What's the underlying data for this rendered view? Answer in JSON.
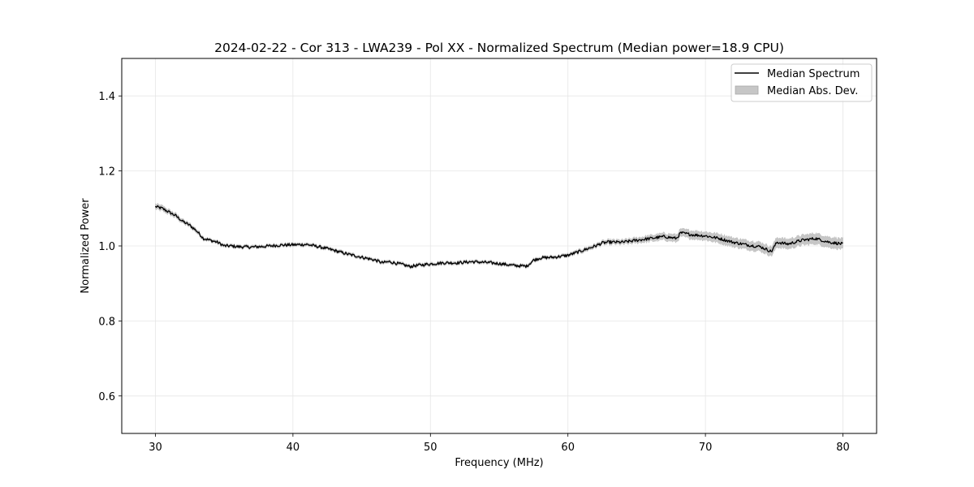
{
  "chart_data": {
    "type": "line",
    "title": "2024-02-22 - Cor 313 - LWA239 - Pol XX - Normalized Spectrum (Median power=18.9 CPU)",
    "xlabel": "Frequency (MHz)",
    "ylabel": "Normalized Power",
    "xlim": [
      27.55,
      82.45
    ],
    "ylim": [
      0.5,
      1.5
    ],
    "xticks": [
      30,
      40,
      50,
      60,
      70,
      80
    ],
    "xtick_labels": [
      "30",
      "40",
      "50",
      "60",
      "70",
      "80"
    ],
    "yticks": [
      0.6,
      0.8,
      1.0,
      1.2,
      1.4
    ],
    "ytick_labels": [
      "0.6",
      "0.8",
      "1.0",
      "1.2",
      "1.4"
    ],
    "grid": true,
    "legend_position": "top-right",
    "legend": [
      "Median Spectrum",
      "Median Abs. Dev."
    ],
    "series": [
      {
        "name": "Median Spectrum",
        "color": "#000000",
        "x": [
          30,
          30.5,
          31,
          31.5,
          32,
          32.5,
          33,
          33.5,
          34,
          34.5,
          35,
          35.5,
          36,
          37,
          38,
          39,
          40,
          41,
          42,
          43,
          44,
          45,
          46,
          46.5,
          47,
          48,
          48.5,
          49,
          50,
          51,
          52,
          53,
          54,
          55,
          56,
          57,
          57.5,
          58,
          59,
          60,
          61,
          62,
          62.5,
          63,
          64,
          65,
          66,
          67,
          67.9,
          68.2,
          69,
          70,
          71,
          72,
          73,
          74,
          74.8,
          75.2,
          76,
          77,
          78,
          79,
          80
        ],
        "values": [
          1.105,
          1.1,
          1.09,
          1.08,
          1.065,
          1.055,
          1.04,
          1.02,
          1.015,
          1.01,
          1.0,
          1.0,
          0.998,
          0.997,
          0.999,
          1.002,
          1.003,
          1.004,
          0.997,
          0.988,
          0.978,
          0.97,
          0.962,
          0.955,
          0.958,
          0.95,
          0.945,
          0.948,
          0.952,
          0.955,
          0.955,
          0.958,
          0.956,
          0.953,
          0.948,
          0.946,
          0.962,
          0.968,
          0.97,
          0.975,
          0.987,
          1.0,
          1.008,
          1.01,
          1.01,
          1.015,
          1.02,
          1.025,
          1.02,
          1.035,
          1.03,
          1.027,
          1.02,
          1.01,
          1.003,
          0.998,
          0.985,
          1.01,
          1.005,
          1.015,
          1.02,
          1.01,
          1.005
        ]
      },
      {
        "name": "Median Abs. Dev.",
        "color": "#c6c6c6",
        "band_halfwidth": [
          0.007,
          0.007,
          0.006,
          0.006,
          0.005,
          0.005,
          0.005,
          0.004,
          0.004,
          0.004,
          0.004,
          0.004,
          0.004,
          0.004,
          0.004,
          0.004,
          0.004,
          0.004,
          0.004,
          0.004,
          0.004,
          0.004,
          0.004,
          0.004,
          0.004,
          0.004,
          0.004,
          0.004,
          0.004,
          0.004,
          0.004,
          0.004,
          0.004,
          0.004,
          0.004,
          0.004,
          0.004,
          0.004,
          0.004,
          0.004,
          0.005,
          0.005,
          0.005,
          0.006,
          0.006,
          0.007,
          0.008,
          0.009,
          0.01,
          0.01,
          0.011,
          0.011,
          0.012,
          0.012,
          0.012,
          0.012,
          0.012,
          0.013,
          0.013,
          0.013,
          0.014,
          0.014,
          0.014
        ]
      }
    ]
  }
}
